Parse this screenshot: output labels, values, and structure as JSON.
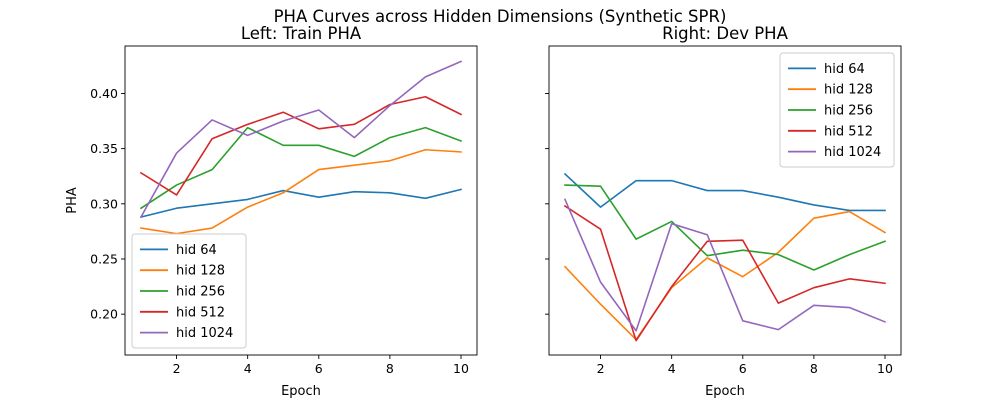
{
  "figure": {
    "suptitle": "PHA Curves across Hidden Dimensions (Synthetic SPR)"
  },
  "chart_data": [
    {
      "type": "line",
      "title": "Left: Train PHA",
      "xlabel": "Epoch",
      "ylabel": "PHA",
      "xlim": [
        0.55,
        10.45
      ],
      "ylim": [
        0.163,
        0.443
      ],
      "xticks": [
        2,
        4,
        6,
        8,
        10
      ],
      "yticks": [
        0.2,
        0.25,
        0.3,
        0.35,
        0.4
      ],
      "ytick_labels": [
        "0.20",
        "0.25",
        "0.30",
        "0.35",
        "0.40"
      ],
      "grid": false,
      "legend_position": "lower-left",
      "x": [
        1,
        2,
        3,
        4,
        5,
        6,
        7,
        8,
        9,
        10
      ],
      "series": [
        {
          "name": "hid 64",
          "color": "#1f77b4",
          "values": [
            0.288,
            0.296,
            0.3,
            0.304,
            0.312,
            0.306,
            0.311,
            0.31,
            0.305,
            0.313
          ]
        },
        {
          "name": "hid 128",
          "color": "#ff7f0e",
          "values": [
            0.278,
            0.273,
            0.278,
            0.297,
            0.31,
            0.331,
            0.335,
            0.339,
            0.349,
            0.347
          ]
        },
        {
          "name": "hid 256",
          "color": "#2ca02c",
          "values": [
            0.296,
            0.317,
            0.331,
            0.369,
            0.353,
            0.353,
            0.343,
            0.36,
            0.369,
            0.357
          ]
        },
        {
          "name": "hid 512",
          "color": "#d62728",
          "values": [
            0.328,
            0.308,
            0.359,
            0.372,
            0.383,
            0.368,
            0.372,
            0.39,
            0.397,
            0.381
          ]
        },
        {
          "name": "hid 1024",
          "color": "#9467bd",
          "values": [
            0.288,
            0.346,
            0.376,
            0.362,
            0.375,
            0.385,
            0.36,
            0.389,
            0.415,
            0.429
          ]
        }
      ]
    },
    {
      "type": "line",
      "title": "Right: Dev PHA",
      "xlabel": "Epoch",
      "ylabel": "",
      "xlim": [
        0.55,
        10.45
      ],
      "ylim": [
        0.163,
        0.443
      ],
      "xticks": [
        2,
        4,
        6,
        8,
        10
      ],
      "yticks": [
        0.2,
        0.25,
        0.3,
        0.35,
        0.4
      ],
      "shared_y": true,
      "grid": false,
      "legend_position": "upper-right",
      "x": [
        1,
        2,
        3,
        4,
        5,
        6,
        7,
        8,
        9,
        10
      ],
      "series": [
        {
          "name": "hid 64",
          "color": "#1f77b4",
          "values": [
            0.327,
            0.297,
            0.321,
            0.321,
            0.312,
            0.312,
            0.306,
            0.299,
            0.294,
            0.294
          ]
        },
        {
          "name": "hid 128",
          "color": "#ff7f0e",
          "values": [
            0.243,
            0.209,
            0.177,
            0.224,
            0.251,
            0.234,
            0.256,
            0.287,
            0.293,
            0.274
          ]
        },
        {
          "name": "hid 256",
          "color": "#2ca02c",
          "values": [
            0.317,
            0.316,
            0.268,
            0.284,
            0.253,
            0.258,
            0.254,
            0.24,
            0.254,
            0.266
          ]
        },
        {
          "name": "hid 512",
          "color": "#d62728",
          "values": [
            0.298,
            0.277,
            0.176,
            0.225,
            0.266,
            0.267,
            0.21,
            0.224,
            0.232,
            0.228
          ]
        },
        {
          "name": "hid 1024",
          "color": "#9467bd",
          "values": [
            0.304,
            0.229,
            0.185,
            0.282,
            0.272,
            0.194,
            0.186,
            0.208,
            0.206,
            0.193
          ]
        }
      ]
    }
  ]
}
